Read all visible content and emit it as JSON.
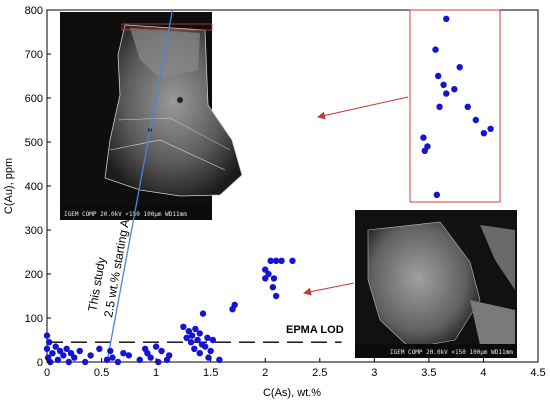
{
  "chart_data": {
    "type": "scatter",
    "title": "",
    "xlabel": "C(As), wt.%",
    "ylabel": "C(Au), ppm",
    "xlim": [
      0,
      4.5
    ],
    "ylim": [
      0,
      800
    ],
    "x_ticks": [
      "0",
      "0.5",
      "1",
      "1.5",
      "2",
      "2.5",
      "3",
      "3.5",
      "4",
      "4.5"
    ],
    "y_ticks": [
      "0",
      "100",
      "200",
      "300",
      "400",
      "500",
      "600",
      "700",
      "800"
    ],
    "point_color": "#1414d2",
    "grid": false,
    "series": [
      {
        "values": [
          [
            0.0,
            60
          ],
          [
            0.02,
            45
          ],
          [
            0.0,
            30
          ],
          [
            0.05,
            20
          ],
          [
            0.01,
            10
          ],
          [
            0.03,
            0
          ],
          [
            0.08,
            35
          ],
          [
            0.1,
            5
          ],
          [
            0.12,
            25
          ],
          [
            0.15,
            15
          ],
          [
            0.18,
            30
          ],
          [
            0.2,
            0
          ],
          [
            0.22,
            20
          ],
          [
            0.25,
            10
          ],
          [
            0.3,
            25
          ],
          [
            0.35,
            0
          ],
          [
            0.4,
            15
          ],
          [
            0.48,
            30
          ],
          [
            0.55,
            5
          ],
          [
            0.58,
            25
          ],
          [
            0.6,
            10
          ],
          [
            0.65,
            0
          ],
          [
            0.7,
            20
          ],
          [
            0.75,
            15
          ],
          [
            0.85,
            5
          ],
          [
            0.9,
            30
          ],
          [
            0.92,
            20
          ],
          [
            0.95,
            10
          ],
          [
            1.0,
            35
          ],
          [
            1.02,
            0
          ],
          [
            1.05,
            25
          ],
          [
            1.1,
            5
          ],
          [
            1.12,
            15
          ],
          [
            1.25,
            80
          ],
          [
            1.28,
            55
          ],
          [
            1.3,
            70
          ],
          [
            1.32,
            45
          ],
          [
            1.33,
            60
          ],
          [
            1.35,
            30
          ],
          [
            1.36,
            75
          ],
          [
            1.38,
            50
          ],
          [
            1.4,
            65
          ],
          [
            1.4,
            20
          ],
          [
            1.42,
            40
          ],
          [
            1.43,
            110
          ],
          [
            1.45,
            35
          ],
          [
            1.47,
            55
          ],
          [
            1.48,
            10
          ],
          [
            1.5,
            25
          ],
          [
            1.52,
            50
          ],
          [
            1.7,
            120
          ],
          [
            1.72,
            130
          ],
          [
            1.58,
            5
          ],
          [
            2.0,
            190
          ],
          [
            2.0,
            210
          ],
          [
            2.03,
            200
          ],
          [
            2.05,
            230
          ],
          [
            2.07,
            170
          ],
          [
            2.08,
            190
          ],
          [
            2.1,
            230
          ],
          [
            2.1,
            150
          ],
          [
            2.15,
            230
          ],
          [
            2.25,
            230
          ]
        ]
      }
    ],
    "trend_line": {
      "label": "This study\n2.5 wt.% starting As",
      "points": [
        [
          0.55,
          0
        ],
        [
          1.15,
          800
        ]
      ],
      "color": "#4a86d6"
    },
    "lod": {
      "label": "EPMA LOD",
      "y": 45,
      "x_range": [
        0.0,
        2.7
      ]
    },
    "inset": {
      "x_ticks_shown": false,
      "values": [
        [
          3.72,
          780
        ],
        [
          3.64,
          710
        ],
        [
          3.66,
          650
        ],
        [
          3.7,
          630
        ],
        [
          3.72,
          610
        ],
        [
          3.67,
          580
        ],
        [
          3.78,
          620
        ],
        [
          3.82,
          670
        ],
        [
          3.88,
          580
        ],
        [
          3.94,
          550
        ],
        [
          4.0,
          520
        ],
        [
          4.05,
          530
        ],
        [
          3.55,
          510
        ],
        [
          3.58,
          490
        ],
        [
          3.56,
          480
        ],
        [
          3.65,
          380
        ]
      ],
      "frame_color": "#d23c3c"
    },
    "sem_images": [
      {
        "caption": "IGEM COMP  20.0kV   ×150  100µm WD11mm"
      },
      {
        "caption": "IGEM COMP  20.0kV   ×150  100µm WD11mm"
      }
    ]
  }
}
